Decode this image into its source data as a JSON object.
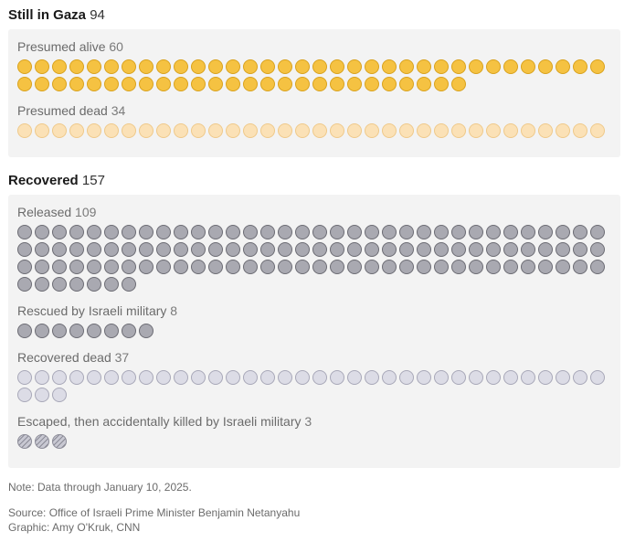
{
  "sections": [
    {
      "title": "Still in Gaza",
      "total": "94",
      "groups": [
        {
          "label": "Presumed alive",
          "count": "60"
        },
        {
          "label": "Presumed dead",
          "count": "34"
        }
      ]
    },
    {
      "title": "Recovered",
      "total": "157",
      "groups": [
        {
          "label": "Released",
          "count": "109"
        },
        {
          "label": "Rescued by Israeli military",
          "count": "8"
        },
        {
          "label": "Recovered dead",
          "count": "37"
        },
        {
          "label": "Escaped, then accidentally killed by Israeli military",
          "count": "3"
        }
      ]
    }
  ],
  "footer": {
    "note": "Note: Data through January 10, 2025.",
    "source": "Source: Office of Israeli Prime Minister Benjamin Netanyahu",
    "graphic": "Graphic: Amy O'Kruk, CNN"
  },
  "chart_data": {
    "type": "unit-dot",
    "categories": [
      "Presumed alive",
      "Presumed dead",
      "Released",
      "Rescued by Israeli military",
      "Recovered dead",
      "Escaped, then accidentally killed by Israeli military"
    ],
    "values": [
      60,
      34,
      109,
      8,
      37,
      3
    ],
    "group_totals": {
      "Still in Gaza": 94,
      "Recovered": 157
    },
    "dots_per_row": 34,
    "colors": {
      "Presumed alive": {
        "fill": "#f5c242",
        "stroke": "#d9a21d"
      },
      "Presumed dead": {
        "fill": "#fbe1b6",
        "stroke": "#efc98a"
      },
      "Released": {
        "fill": "#a9a9b1",
        "stroke": "#6c6c74"
      },
      "Rescued by Israeli military": {
        "fill": "#a9a9b1",
        "stroke": "#6c6c74"
      },
      "Recovered dead": {
        "fill": "#dcdce6",
        "stroke": "#a8a8b8"
      },
      "Escaped, then accidentally killed by Israeli military": {
        "fill": "#c8c8d2",
        "stroke": "#8c8c98",
        "pattern": "hatched"
      }
    }
  }
}
